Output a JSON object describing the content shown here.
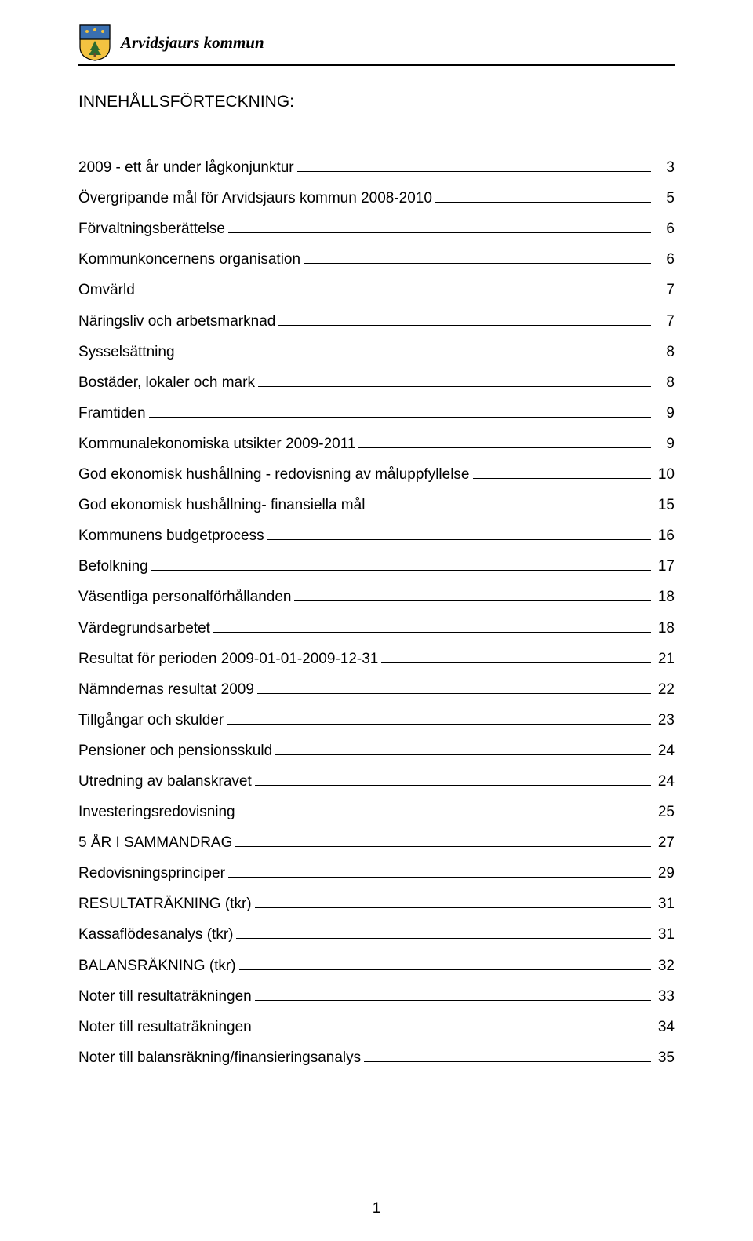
{
  "header": {
    "municipality": "Arvidsjaurs kommun",
    "crest_colors": {
      "shield_top": "#3a6fb0",
      "shield_bottom": "#f3c341",
      "outline": "#000000",
      "tree": "#2e6b2e"
    }
  },
  "toc_title": "INNEHÅLLSFÖRTECKNING:",
  "toc": [
    {
      "label": "2009 - ett år under lågkonjunktur",
      "page": "3"
    },
    {
      "label": "Övergripande mål för Arvidsjaurs kommun 2008-2010",
      "page": "5"
    },
    {
      "label": "Förvaltningsberättelse",
      "page": "6"
    },
    {
      "label": "Kommunkoncernens organisation",
      "page": "6"
    },
    {
      "label": "Omvärld",
      "page": "7"
    },
    {
      "label": "Näringsliv och arbetsmarknad",
      "page": "7"
    },
    {
      "label": "Sysselsättning",
      "page": "8"
    },
    {
      "label": "Bostäder, lokaler och mark",
      "page": "8"
    },
    {
      "label": "Framtiden",
      "page": "9"
    },
    {
      "label": "Kommunalekonomiska utsikter 2009-2011",
      "page": "9"
    },
    {
      "label": "God ekonomisk hushållning - redovisning av måluppfyllelse",
      "page": "10"
    },
    {
      "label": "God ekonomisk hushållning- finansiella mål",
      "page": "15"
    },
    {
      "label": "Kommunens  budgetprocess",
      "page": "16"
    },
    {
      "label": "Befolkning",
      "page": "17"
    },
    {
      "label": "Väsentliga personalförhållanden",
      "page": "18"
    },
    {
      "label": "Värdegrundsarbetet",
      "page": "18"
    },
    {
      "label": "Resultat för perioden 2009-01-01-2009-12-31",
      "page": "21"
    },
    {
      "label": "Nämndernas resultat 2009",
      "page": "22"
    },
    {
      "label": "Tillgångar och skulder",
      "page": "23"
    },
    {
      "label": "Pensioner och pensionsskuld",
      "page": "24"
    },
    {
      "label": "Utredning av balanskravet",
      "page": "24"
    },
    {
      "label": "Investeringsredovisning",
      "page": "25"
    },
    {
      "label": "5 ÅR I SAMMANDRAG",
      "page": "27"
    },
    {
      "label": "Redovisningsprinciper",
      "page": "29"
    },
    {
      "label": "RESULTATRÄKNING (tkr)",
      "page": "31"
    },
    {
      "label": "Kassaflödesanalys (tkr)",
      "page": "31"
    },
    {
      "label": "BALANSRÄKNING (tkr)",
      "page": "32"
    },
    {
      "label": "Noter till resultaträkningen",
      "page": "33"
    },
    {
      "label": "Noter till resultaträkningen",
      "page": "34"
    },
    {
      "label": "Noter till balansräkning/finansieringsanalys",
      "page": "35"
    }
  ],
  "page_number": "1"
}
